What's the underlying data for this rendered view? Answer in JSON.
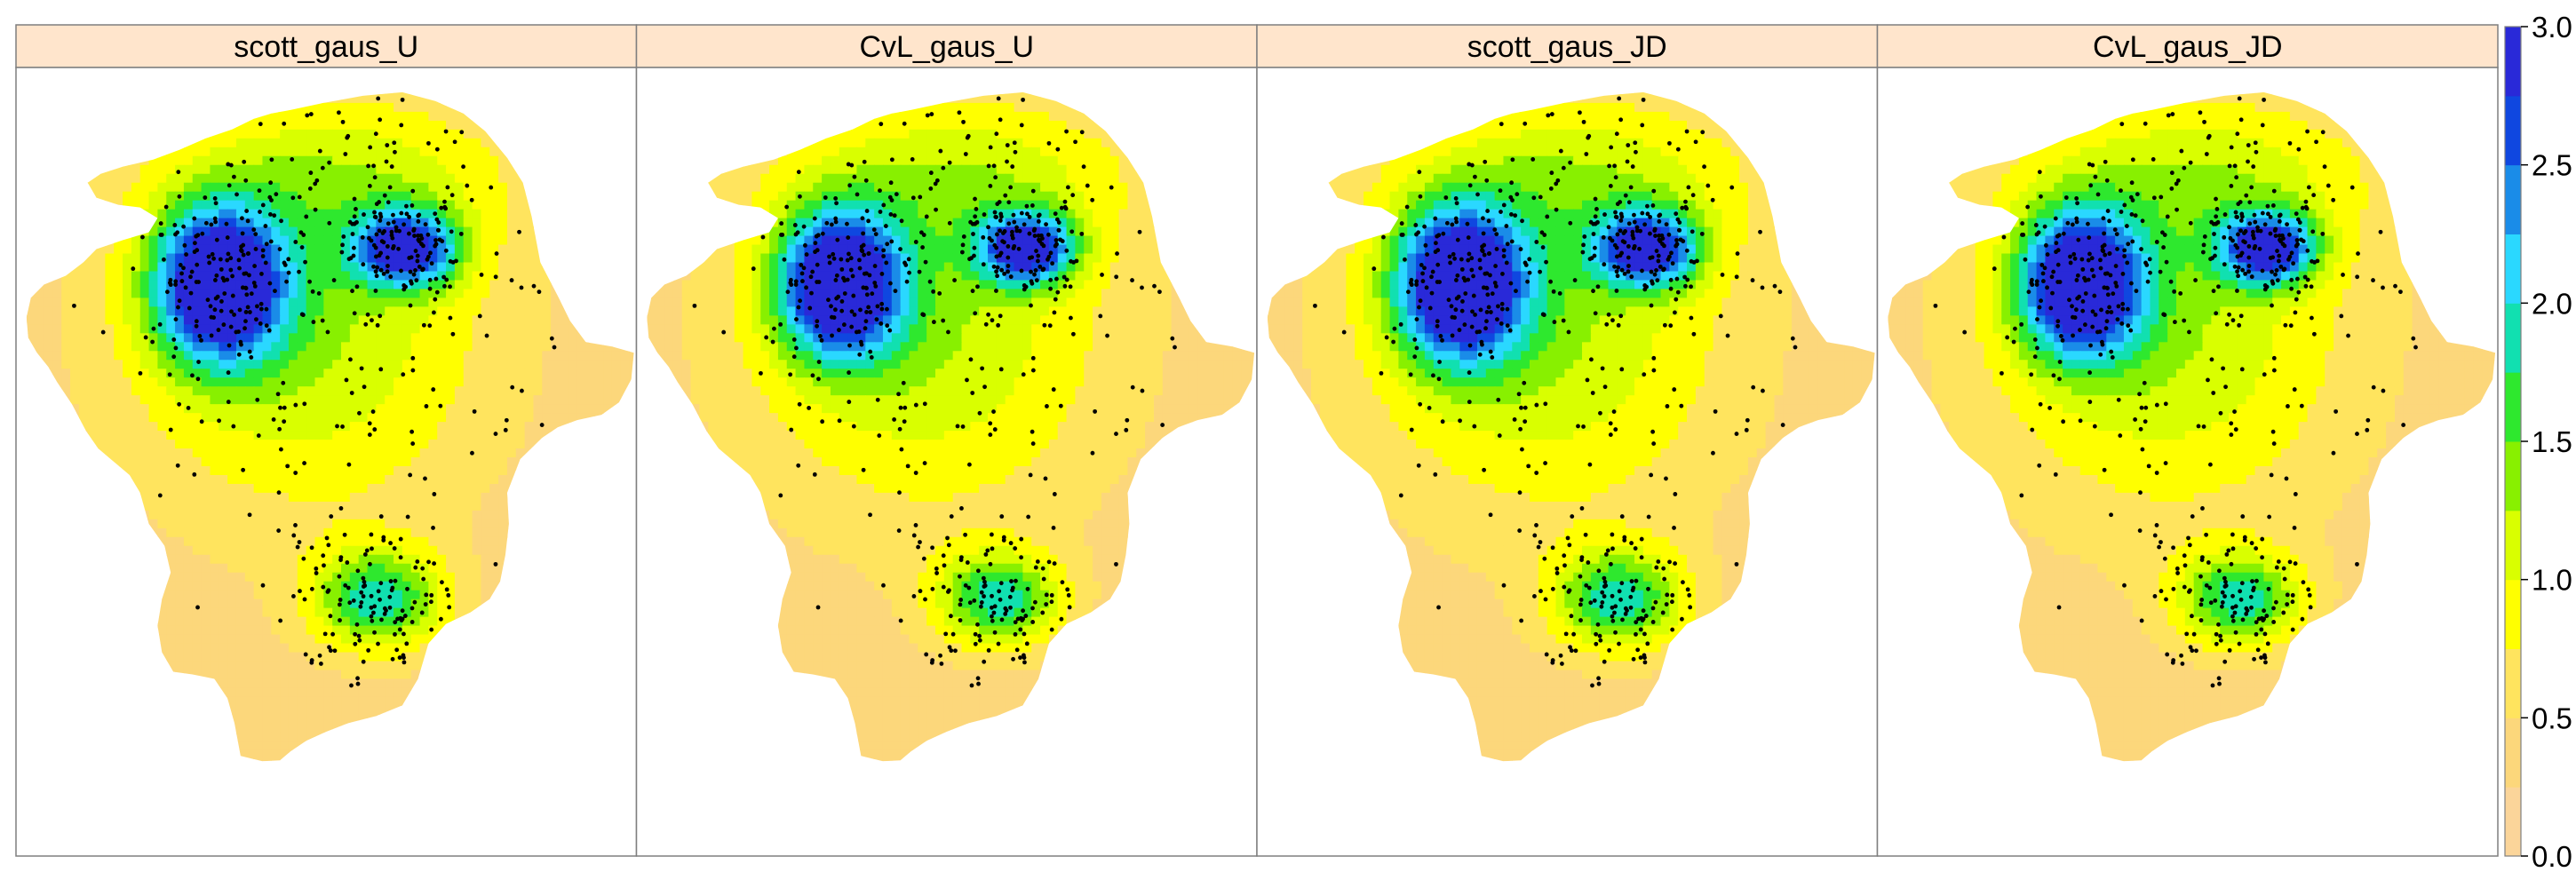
{
  "chart_data": {
    "type": "heatmap",
    "layout": "4 facet panels in one row with a shared color key on the right",
    "panels": [
      {
        "label": "scott_gaus_U"
      },
      {
        "label": "CvL_gaus_U"
      },
      {
        "label": "scott_gaus_JD"
      },
      {
        "label": "CvL_gaus_JD"
      }
    ],
    "colorbar": {
      "range": [
        0.0,
        3.0
      ],
      "tick_values": [
        0.0,
        0.5,
        1.0,
        1.5,
        2.0,
        2.5,
        3.0
      ],
      "tick_labels": [
        "0.0",
        "0.5",
        "1.0",
        "1.5",
        "2.0",
        "2.5",
        "3.0"
      ],
      "breaks": [
        0.0,
        0.25,
        0.5,
        0.75,
        1.0,
        1.25,
        1.5,
        1.75,
        2.0,
        2.25,
        2.5,
        2.75,
        3.0
      ],
      "colors": [
        "#fbd59a",
        "#fcd77b",
        "#ffe45e",
        "#ffff00",
        "#d9ff00",
        "#88f000",
        "#2ee82e",
        "#11e0b0",
        "#2ad8ff",
        "#1a8ce8",
        "#0f47e0",
        "#2929d8"
      ]
    },
    "overlay": "points (black dots) marking observation locations",
    "modes_approx_value": {
      "west_peak": 2.8,
      "northeast_peak": 2.3,
      "south_lobe": 1.5
    }
  }
}
